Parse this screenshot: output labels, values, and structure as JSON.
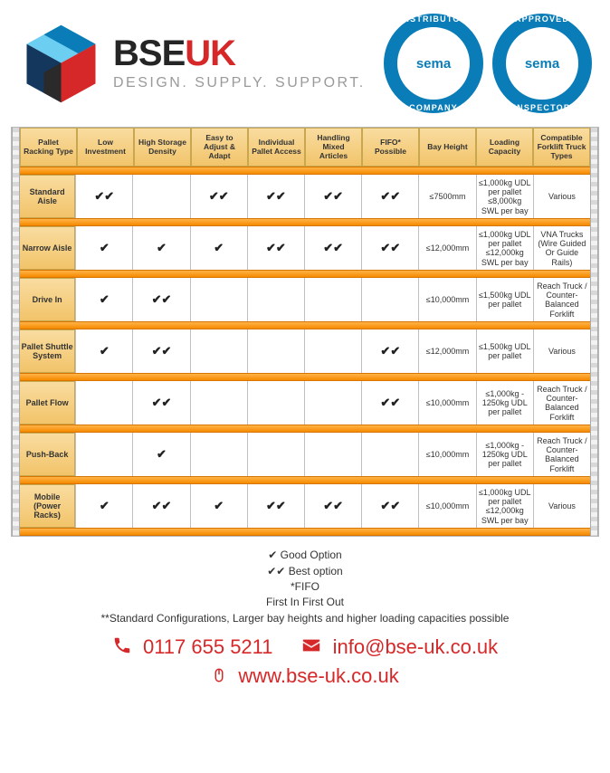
{
  "brand": {
    "name_part1": "BSE",
    "name_part2": "UK",
    "tagline": "DESIGN. SUPPLY. SUPPORT.",
    "colors": {
      "dark": "#252525",
      "red": "#d62828",
      "grey": "#9a9a9a",
      "blue": "#0a7db8",
      "badge_blue": "#0a7db8"
    },
    "logo_cube_colors": [
      "#6ccef0",
      "#0a7db8",
      "#14375e",
      "#d62828",
      "#2a2a2a",
      "#4a4a4a"
    ]
  },
  "badges": [
    {
      "top": "DISTRIBUTOR",
      "bottom": "COMPANY",
      "inner": "sema"
    },
    {
      "top": "APPROVED",
      "bottom": "INSPECTOR",
      "inner": "sema"
    }
  ],
  "table": {
    "headers": [
      "Pallet Racking Type",
      "Low Investment",
      "High Storage Density",
      "Easy to Adjust & Adapt",
      "Individual Pallet Access",
      "Handling Mixed Articles",
      "FIFO* Possible",
      "Bay Height",
      "Loading Capacity",
      "Compatible Forklift Truck Types"
    ],
    "rows": [
      {
        "label": "Standard Aisle",
        "cells": [
          "✔✔",
          "",
          "✔✔",
          "✔✔",
          "✔✔",
          "✔✔",
          "≤7500mm",
          "≤1,000kg UDL per pallet ≤8,000kg SWL per bay",
          "Various"
        ]
      },
      {
        "label": "Narrow Aisle",
        "cells": [
          "✔",
          "✔",
          "✔",
          "✔✔",
          "✔✔",
          "✔✔",
          "≤12,000mm",
          "≤1,000kg UDL per pallet ≤12,000kg SWL per bay",
          "VNA Trucks (Wire Guided Or Guide Rails)"
        ]
      },
      {
        "label": "Drive In",
        "cells": [
          "✔",
          "✔✔",
          "",
          "",
          "",
          "",
          "≤10,000mm",
          "≤1,500kg UDL per pallet",
          "Reach Truck / Counter-Balanced Forklift"
        ]
      },
      {
        "label": "Pallet Shuttle System",
        "cells": [
          "✔",
          "✔✔",
          "",
          "",
          "",
          "✔✔",
          "≤12,000mm",
          "≤1,500kg UDL per pallet",
          "Various"
        ]
      },
      {
        "label": "Pallet Flow",
        "cells": [
          "",
          "✔✔",
          "",
          "",
          "",
          "✔✔",
          "≤10,000mm",
          "≤1,000kg - 1250kg UDL per pallet",
          "Reach Truck / Counter-Balanced Forklift"
        ]
      },
      {
        "label": "Push-Back",
        "cells": [
          "",
          "✔",
          "",
          "",
          "",
          "",
          "≤10,000mm",
          "≤1,000kg - 1250kg UDL per pallet",
          "Reach Truck / Counter-Balanced Forklift"
        ]
      },
      {
        "label": "Mobile (Power Racks)",
        "cells": [
          "✔",
          "✔✔",
          "✔",
          "✔✔",
          "✔✔",
          "✔✔",
          "≤10,000mm",
          "≤1,000kg UDL per pallet ≤12,000kg SWL per bay",
          "Various"
        ]
      }
    ],
    "beam_color": "#f58a00",
    "header_fill": "#f2c46a"
  },
  "legend": {
    "l1": "✔ Good Option",
    "l2": "✔✔ Best option",
    "l3": "*FIFO",
    "l4": "First In First Out",
    "l5": "**Standard Configurations, Larger bay heights and higher loading capacities possible"
  },
  "contact": {
    "phone": "0117 655 5211",
    "email": "info@bse-uk.co.uk",
    "web": "www.bse-uk.co.uk"
  }
}
